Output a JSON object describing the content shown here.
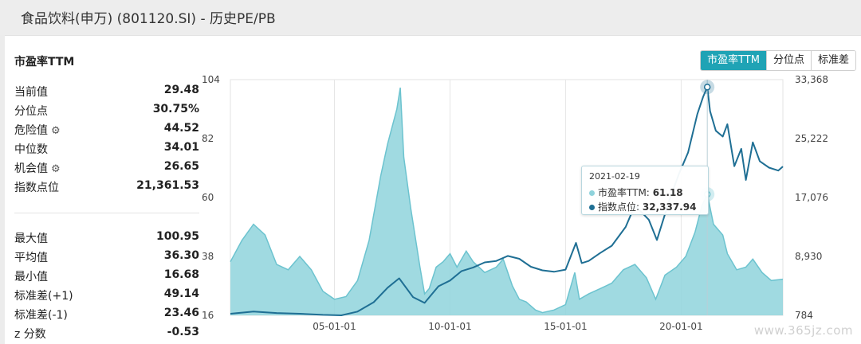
{
  "page": {
    "title": "食品饮料(申万) (801120.SI) - 历史PE/PB"
  },
  "card": {
    "title": "市盈率TTM"
  },
  "tabs": [
    {
      "label": "市盈率TTM",
      "active": true
    },
    {
      "label": "分位点",
      "active": false
    },
    {
      "label": "标准差",
      "active": false
    }
  ],
  "stats_top": [
    {
      "label": "当前值",
      "value": "29.48",
      "gear": false
    },
    {
      "label": "分位点",
      "value": "30.75%",
      "gear": false
    },
    {
      "label": "危险值",
      "value": "44.52",
      "gear": true
    },
    {
      "label": "中位数",
      "value": "34.01",
      "gear": false
    },
    {
      "label": "机会值",
      "value": "26.65",
      "gear": true
    },
    {
      "label": "指数点位",
      "value": "21,361.53",
      "gear": false
    }
  ],
  "stats_bottom": [
    {
      "label": "最大值",
      "value": "100.95"
    },
    {
      "label": "平均值",
      "value": "36.30"
    },
    {
      "label": "最小值",
      "value": "16.68"
    },
    {
      "label": "标准差(+1)",
      "value": "49.14"
    },
    {
      "label": "标准差(-1)",
      "value": "23.46"
    },
    {
      "label": "z 分数",
      "value": "-0.53"
    }
  ],
  "tooltip": {
    "date": "2021-02-19",
    "pe_label": "市盈率TTM:",
    "pe_value": "61.18",
    "idx_label": "指数点位:",
    "idx_value": "32,337.94"
  },
  "watermark": "www.365jz.com",
  "colors": {
    "pe_fill": "#8fd3dc",
    "pe_line": "#6cc3cf",
    "index_line": "#1f6f94",
    "accent": "#1fa3b5"
  },
  "chart_data": {
    "type": "area",
    "x_tick_labels": [
      "05-01-01",
      "10-01-01",
      "15-01-01",
      "20-01-01"
    ],
    "x_ticks": [
      2005.0,
      2010.0,
      2015.0,
      2020.0
    ],
    "xlim": [
      2000.5,
      2024.4
    ],
    "y_left_ticks": [
      "104",
      "82",
      "60",
      "38",
      "16"
    ],
    "ylim_left": [
      16,
      104
    ],
    "y_right_ticks": [
      "33,368",
      "25,222",
      "17,076",
      "8,930",
      "784"
    ],
    "ylim_right": [
      784,
      33368
    ],
    "series": [
      {
        "name": "市盈率TTM",
        "axis": "left",
        "points": [
          [
            2000.5,
            36
          ],
          [
            2001.0,
            44
          ],
          [
            2001.5,
            50
          ],
          [
            2002.0,
            46
          ],
          [
            2002.5,
            35
          ],
          [
            2003.0,
            33
          ],
          [
            2003.5,
            38
          ],
          [
            2004.0,
            33
          ],
          [
            2004.5,
            25
          ],
          [
            2005.0,
            22
          ],
          [
            2005.5,
            23
          ],
          [
            2006.0,
            29
          ],
          [
            2006.5,
            44
          ],
          [
            2007.0,
            68
          ],
          [
            2007.3,
            80
          ],
          [
            2007.7,
            93
          ],
          [
            2007.85,
            101
          ],
          [
            2008.0,
            75
          ],
          [
            2008.3,
            56
          ],
          [
            2008.7,
            34
          ],
          [
            2008.9,
            24
          ],
          [
            2009.1,
            26
          ],
          [
            2009.4,
            34
          ],
          [
            2009.7,
            36
          ],
          [
            2010.0,
            39
          ],
          [
            2010.3,
            34
          ],
          [
            2010.7,
            40
          ],
          [
            2011.0,
            36
          ],
          [
            2011.5,
            32
          ],
          [
            2012.0,
            34
          ],
          [
            2012.3,
            37
          ],
          [
            2012.7,
            27
          ],
          [
            2013.0,
            22
          ],
          [
            2013.3,
            21
          ],
          [
            2013.7,
            18
          ],
          [
            2014.0,
            17
          ],
          [
            2014.5,
            18
          ],
          [
            2015.0,
            20
          ],
          [
            2015.4,
            32
          ],
          [
            2015.6,
            22
          ],
          [
            2016.0,
            24
          ],
          [
            2016.5,
            26
          ],
          [
            2017.0,
            28
          ],
          [
            2017.5,
            33
          ],
          [
            2018.0,
            35
          ],
          [
            2018.5,
            30
          ],
          [
            2018.9,
            22
          ],
          [
            2019.3,
            31
          ],
          [
            2019.8,
            34
          ],
          [
            2020.2,
            38
          ],
          [
            2020.6,
            47
          ],
          [
            2020.9,
            57
          ],
          [
            2021.13,
            61.18
          ],
          [
            2021.4,
            50
          ],
          [
            2021.8,
            46
          ],
          [
            2022.0,
            39
          ],
          [
            2022.4,
            33
          ],
          [
            2022.8,
            34
          ],
          [
            2023.1,
            37
          ],
          [
            2023.5,
            32
          ],
          [
            2023.9,
            29
          ],
          [
            2024.4,
            29.5
          ]
        ]
      },
      {
        "name": "指数点位",
        "axis": "right",
        "points": [
          [
            2000.5,
            1000
          ],
          [
            2001.5,
            1300
          ],
          [
            2002.5,
            1100
          ],
          [
            2003.5,
            1000
          ],
          [
            2004.5,
            850
          ],
          [
            2005.3,
            784
          ],
          [
            2006.0,
            1300
          ],
          [
            2006.7,
            2600
          ],
          [
            2007.3,
            4600
          ],
          [
            2007.8,
            5900
          ],
          [
            2008.4,
            3300
          ],
          [
            2008.9,
            2500
          ],
          [
            2009.5,
            4800
          ],
          [
            2010.0,
            5600
          ],
          [
            2010.5,
            6900
          ],
          [
            2011.0,
            7400
          ],
          [
            2011.5,
            8100
          ],
          [
            2012.0,
            8300
          ],
          [
            2012.5,
            9000
          ],
          [
            2013.0,
            8600
          ],
          [
            2013.5,
            7500
          ],
          [
            2014.0,
            7000
          ],
          [
            2014.5,
            6800
          ],
          [
            2015.0,
            7100
          ],
          [
            2015.45,
            10800
          ],
          [
            2015.7,
            8000
          ],
          [
            2016.0,
            8300
          ],
          [
            2016.5,
            9400
          ],
          [
            2017.0,
            10400
          ],
          [
            2017.6,
            13000
          ],
          [
            2018.0,
            16000
          ],
          [
            2018.6,
            14000
          ],
          [
            2018.95,
            11200
          ],
          [
            2019.5,
            16800
          ],
          [
            2019.9,
            20300
          ],
          [
            2020.3,
            23300
          ],
          [
            2020.7,
            28600
          ],
          [
            2020.95,
            31000
          ],
          [
            2021.13,
            32337.94
          ],
          [
            2021.25,
            29000
          ],
          [
            2021.5,
            26300
          ],
          [
            2021.8,
            25500
          ],
          [
            2022.0,
            27200
          ],
          [
            2022.3,
            21400
          ],
          [
            2022.6,
            23800
          ],
          [
            2022.8,
            19500
          ],
          [
            2023.1,
            24700
          ],
          [
            2023.4,
            22100
          ],
          [
            2023.8,
            21200
          ],
          [
            2024.2,
            20800
          ],
          [
            2024.4,
            21361.53
          ]
        ]
      }
    ],
    "hover_x": 2021.13,
    "legend": "none",
    "grid": "vertical"
  }
}
